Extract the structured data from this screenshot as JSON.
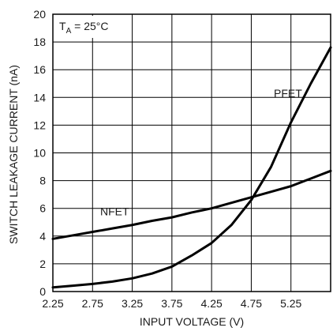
{
  "chart_data": {
    "type": "line",
    "title": "",
    "xlabel": "INPUT VOLTAGE (V)",
    "ylabel": "SWITCH LEAKAGE CURRENT (nA)",
    "xlim": [
      2.25,
      5.75
    ],
    "ylim": [
      0,
      20
    ],
    "x_ticks": [
      2.25,
      2.75,
      3.25,
      3.75,
      4.25,
      4.75,
      5.25
    ],
    "x_tick_labels": [
      "2.25",
      "2.75",
      "3.25",
      "3.75",
      "4.25",
      "4.75",
      "5.25"
    ],
    "y_ticks": [
      0,
      2,
      4,
      6,
      8,
      10,
      12,
      14,
      16,
      18,
      20
    ],
    "y_tick_labels": [
      "0",
      "2",
      "4",
      "6",
      "8",
      "10",
      "12",
      "14",
      "16",
      "18",
      "20"
    ],
    "grid": true,
    "annotation": {
      "parts": [
        {
          "text": "T",
          "sub": false
        },
        {
          "text": "A",
          "sub": true
        },
        {
          "text": " = 25°C",
          "sub": false
        }
      ]
    },
    "series": [
      {
        "name": "NFET",
        "x": [
          2.25,
          2.5,
          2.75,
          3.0,
          3.25,
          3.5,
          3.75,
          4.0,
          4.25,
          4.5,
          4.75,
          5.0,
          5.25,
          5.5,
          5.75
        ],
        "y": [
          3.8,
          4.05,
          4.3,
          4.55,
          4.8,
          5.1,
          5.35,
          5.7,
          6.0,
          6.4,
          6.8,
          7.2,
          7.6,
          8.15,
          8.7
        ]
      },
      {
        "name": "PFET",
        "x": [
          2.25,
          2.5,
          2.75,
          3.0,
          3.25,
          3.5,
          3.75,
          4.0,
          4.25,
          4.5,
          4.75,
          5.0,
          5.25,
          5.5,
          5.75
        ],
        "y": [
          0.3,
          0.42,
          0.55,
          0.72,
          0.95,
          1.3,
          1.8,
          2.6,
          3.5,
          4.8,
          6.6,
          9.0,
          12.2,
          15.0,
          17.6
        ]
      }
    ]
  }
}
